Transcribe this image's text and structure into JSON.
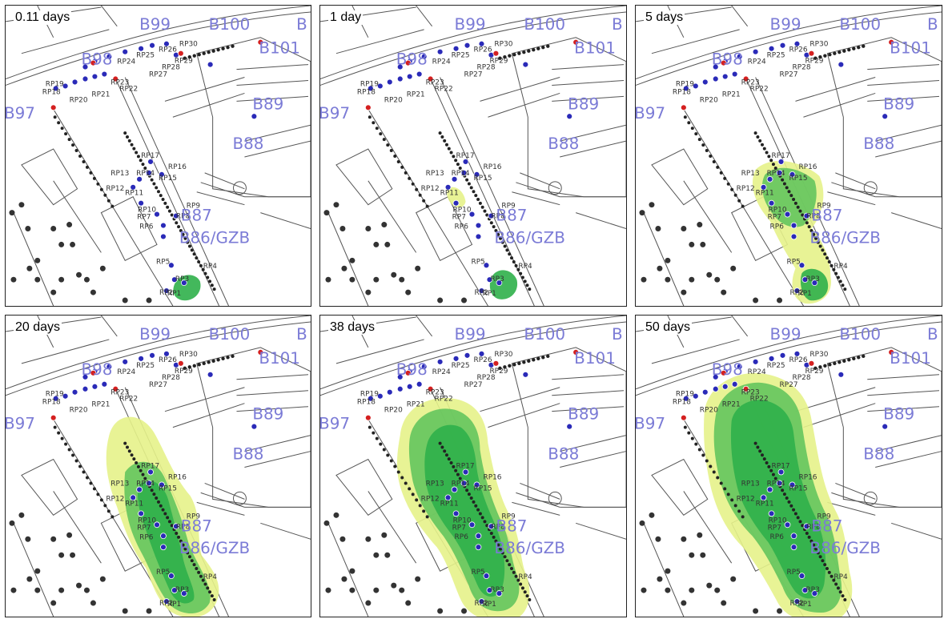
{
  "panels": [
    {
      "title": "0.11 days",
      "plume": 0
    },
    {
      "title": "1 day",
      "plume": 1
    },
    {
      "title": "5 days",
      "plume": 2
    },
    {
      "title": "20 days",
      "plume": 3
    },
    {
      "title": "38 days",
      "plume": 4
    },
    {
      "title": "50 days",
      "plume": 5
    }
  ],
  "buildings": [
    "B99",
    "B100",
    "B101",
    "B98",
    "B97",
    "B89",
    "B88",
    "B87",
    "B86/GZB",
    "B"
  ],
  "rp_labels": [
    "RP30",
    "RP26",
    "RP25",
    "RP24",
    "RP29",
    "RP28",
    "RP27",
    "RP23",
    "RP22",
    "RP21",
    "RP20",
    "RP19",
    "RP18",
    "RP17",
    "RP16",
    "RP15",
    "RP14",
    "RP13",
    "RP12",
    "RP11",
    "RP10",
    "RP9",
    "RP8",
    "RP7",
    "RP6",
    "RP5",
    "RP4",
    "RP3",
    "RP2",
    "RP1"
  ],
  "colors": {
    "plume_inner": "#2fb04a",
    "plume_mid": "#5cc25a",
    "plume_outer": "#e6f28a",
    "building_label": "#7b7bd6",
    "well_blue": "#2a2ab8",
    "well_red": "#d42020",
    "lines": "#555555"
  }
}
